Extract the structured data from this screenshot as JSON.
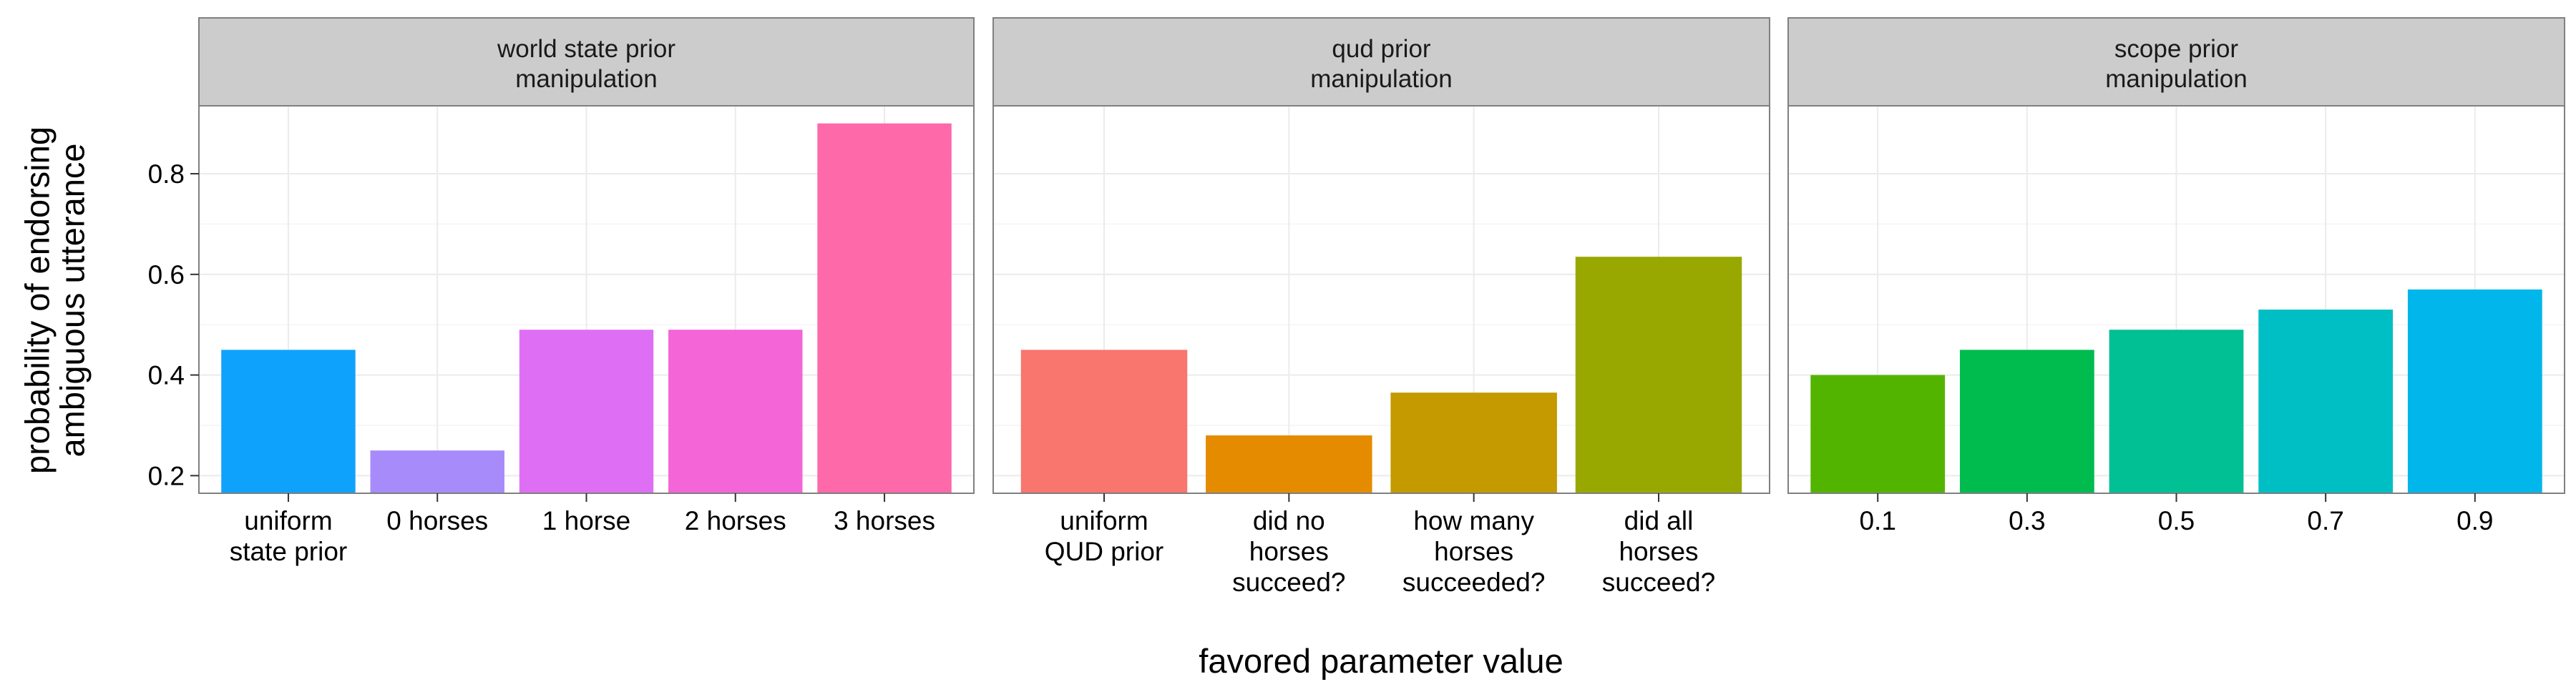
{
  "chart_data": {
    "type": "bar",
    "xlabel": "favored parameter value",
    "ylabel": [
      "probability of endorsing",
      "ambiguous utterance"
    ],
    "ylim": [
      0.165,
      0.935
    ],
    "yticks": [
      0.2,
      0.4,
      0.6,
      0.8
    ],
    "grid": true,
    "legend": "none",
    "panels": [
      {
        "strip": [
          "world state prior",
          "manipulation"
        ],
        "categories": [
          [
            "uniform",
            "state prior"
          ],
          [
            "0 horses"
          ],
          [
            "1 horse"
          ],
          [
            "2 horses"
          ],
          [
            "3 horses"
          ]
        ],
        "values": [
          0.45,
          0.25,
          0.49,
          0.49,
          0.9
        ],
        "colors": [
          "#0FA2FC",
          "#A78BFA",
          "#DE6FF4",
          "#F465D8",
          "#FE69AA"
        ]
      },
      {
        "strip": [
          "qud prior",
          "manipulation"
        ],
        "categories": [
          [
            "uniform",
            "QUD prior"
          ],
          [
            "did no",
            "horses",
            "succeed?"
          ],
          [
            "how many",
            "horses",
            "succeeded?"
          ],
          [
            "did all",
            "horses",
            "succeed?"
          ]
        ],
        "values": [
          0.45,
          0.28,
          0.365,
          0.635
        ],
        "colors": [
          "#F8766D",
          "#E48B00",
          "#C49A00",
          "#99A800"
        ]
      },
      {
        "strip": [
          "scope prior",
          "manipulation"
        ],
        "categories": [
          [
            "0.1"
          ],
          [
            "0.3"
          ],
          [
            "0.5"
          ],
          [
            "0.7"
          ],
          [
            "0.9"
          ]
        ],
        "values": [
          0.4,
          0.45,
          0.49,
          0.53,
          0.57
        ],
        "colors": [
          "#53B400",
          "#00BB4E",
          "#00C094",
          "#00BFC4",
          "#00B6EB"
        ]
      }
    ]
  }
}
